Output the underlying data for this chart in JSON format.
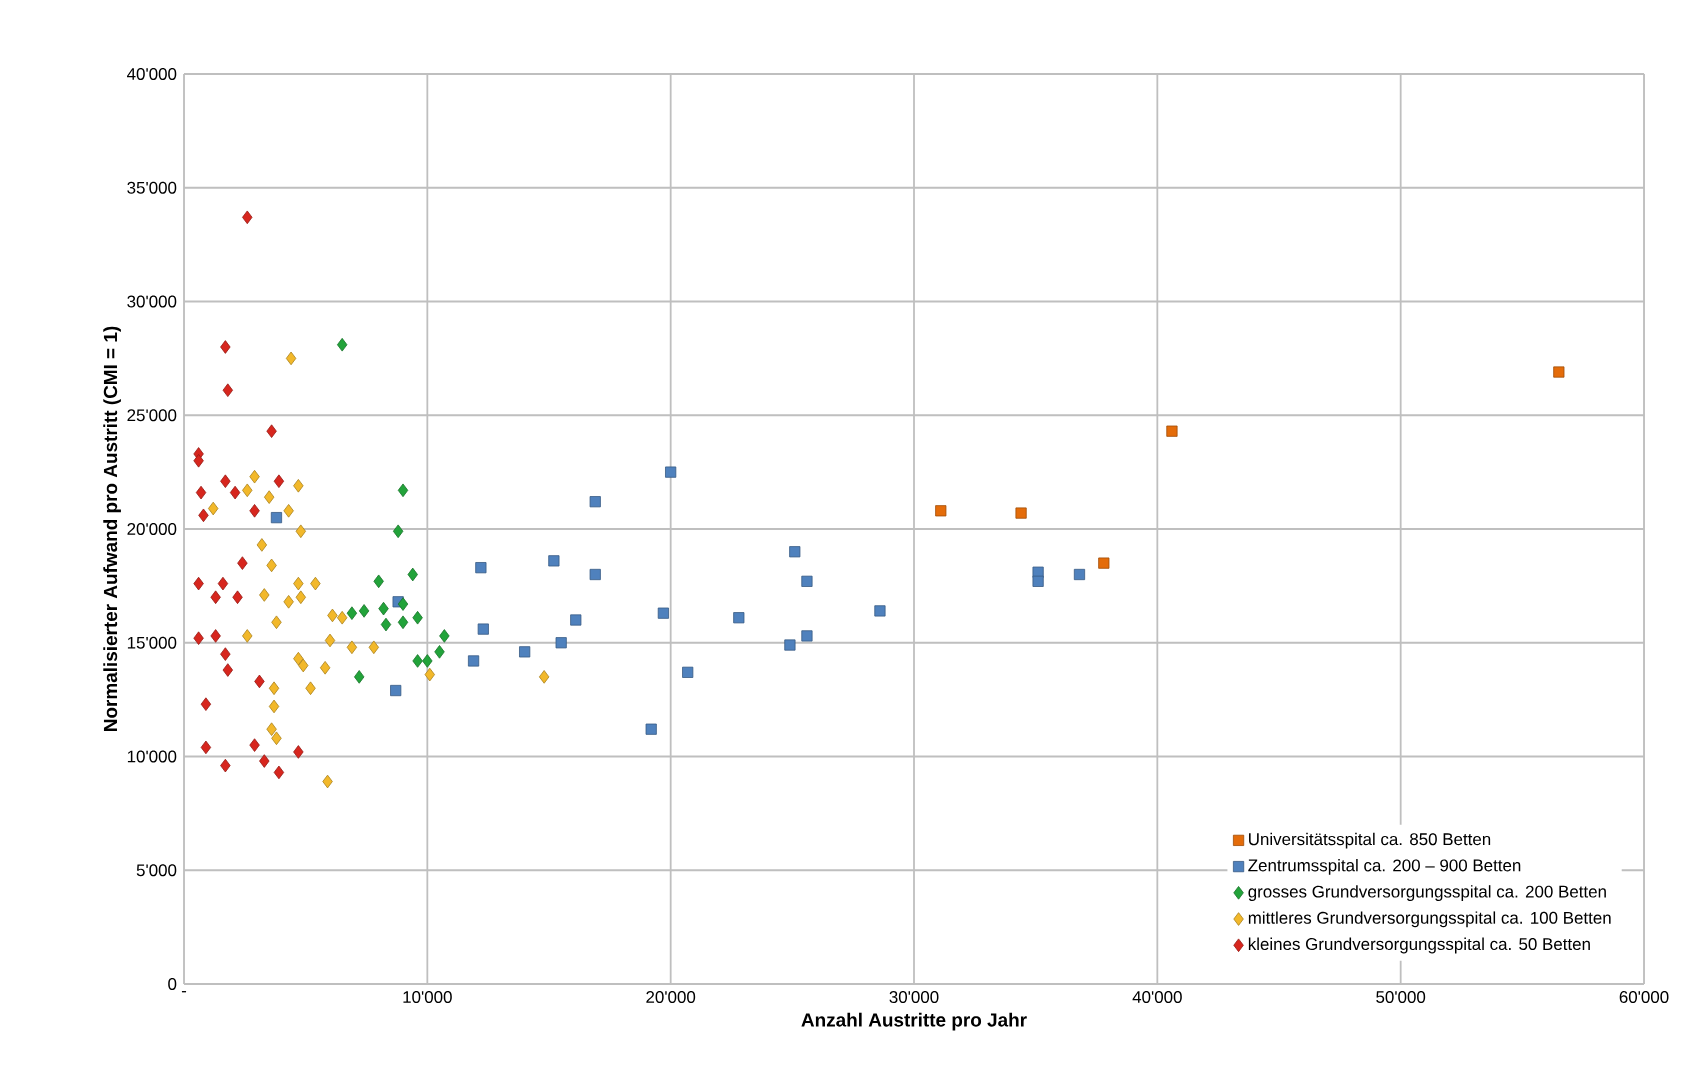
{
  "chart_data": {
    "type": "scatter",
    "xlabel": "Anzahl Austritte pro Jahr",
    "ylabel": "Normalisierter Aufwand pro Austritt (CMI = 1)",
    "xlim": [
      0,
      60000
    ],
    "ylim": [
      0,
      40000
    ],
    "xticks": [
      {
        "value": 0,
        "label": "-"
      },
      {
        "value": 10000,
        "label": "10'000"
      },
      {
        "value": 20000,
        "label": "20'000"
      },
      {
        "value": 30000,
        "label": "30'000"
      },
      {
        "value": 40000,
        "label": "40'000"
      },
      {
        "value": 50000,
        "label": "50'000"
      },
      {
        "value": 60000,
        "label": "60'000"
      }
    ],
    "yticks": [
      0,
      {
        "value": 5000,
        "label": "5'000"
      },
      {
        "value": 10000,
        "label": "10'000"
      },
      {
        "value": 15000,
        "label": "15'000"
      },
      {
        "value": 20000,
        "label": "20'000"
      },
      {
        "value": 25000,
        "label": "25'000"
      },
      {
        "value": 30000,
        "label": "30'000"
      },
      {
        "value": 35000,
        "label": "35'000"
      },
      {
        "value": 40000,
        "label": "40'000"
      }
    ],
    "grid": true,
    "legend": "bottom right",
    "series": [
      {
        "name": "Universitätsspital ca. 850 Betten",
        "color": "#e46c0a",
        "marker": "square",
        "x": [
          31100,
          34400,
          37800,
          40600,
          56500
        ],
        "values": [
          20800,
          20700,
          18500,
          24300,
          26900
        ]
      },
      {
        "name": "Zentrumsspital ca. 200 – 900 Betten",
        "color": "#4f81bd",
        "marker": "square",
        "x": [
          3800,
          8800,
          8700,
          11900,
          12200,
          12300,
          14000,
          15200,
          15500,
          16100,
          16900,
          16900,
          19200,
          19700,
          20000,
          20700,
          22800,
          24900,
          25100,
          25600,
          25600,
          28600,
          35100,
          35100,
          36800
        ],
        "values": [
          20500,
          16800,
          12900,
          14200,
          18300,
          15600,
          14600,
          18600,
          15000,
          16000,
          21200,
          18000,
          11200,
          16300,
          22500,
          13700,
          16100,
          14900,
          19000,
          17700,
          15300,
          16400,
          18100,
          17700,
          18000
        ]
      },
      {
        "name": "grosses Grundversorgungsspital ca. 200 Betten",
        "color": "#22a33a",
        "marker": "diamond",
        "x": [
          6500,
          9000,
          8800,
          8000,
          9400,
          6900,
          7400,
          8200,
          9000,
          8300,
          9000,
          9600,
          10700,
          10500,
          9600,
          10000,
          7200
        ],
        "values": [
          28100,
          21700,
          19900,
          17700,
          18000,
          16300,
          16400,
          16500,
          16700,
          15800,
          15900,
          16100,
          15300,
          14600,
          14200,
          14200,
          13500
        ]
      },
      {
        "name": "mittleres Grundversorgungsspital ca. 100 Betten",
        "color": "#f2b82a",
        "marker": "diamond",
        "x": [
          4400,
          2900,
          2600,
          4700,
          3500,
          1200,
          4300,
          4800,
          3200,
          3600,
          4700,
          5400,
          3300,
          4300,
          4800,
          6100,
          6500,
          3800,
          2600,
          6000,
          6900,
          7800,
          4700,
          4900,
          5800,
          5200,
          3700,
          3700,
          3600,
          3800,
          5900,
          10100,
          14800
        ],
        "values": [
          27500,
          22300,
          21700,
          21900,
          21400,
          20900,
          20800,
          19900,
          19300,
          18400,
          17600,
          17600,
          17100,
          16800,
          17000,
          16200,
          16100,
          15900,
          15300,
          15100,
          14800,
          14800,
          14300,
          14000,
          13900,
          13000,
          13000,
          12200,
          11200,
          10800,
          8900,
          13600,
          13500
        ]
      },
      {
        "name": "kleines Grundversorgungsspital ca. 50 Betten",
        "color": "#d7261e",
        "marker": "diamond",
        "x": [
          2600,
          1700,
          1800,
          3600,
          600,
          600,
          1700,
          2100,
          3900,
          700,
          800,
          2900,
          2400,
          600,
          1600,
          1300,
          2200,
          600,
          1300,
          1700,
          1800,
          3100,
          900,
          900,
          2900,
          3300,
          4700,
          1700,
          3900
        ],
        "values": [
          33700,
          28000,
          26100,
          24300,
          23300,
          23000,
          22100,
          21600,
          22100,
          21600,
          20600,
          20800,
          18500,
          17600,
          17600,
          17000,
          17000,
          15200,
          15300,
          14500,
          13800,
          13300,
          12300,
          10400,
          10500,
          9800,
          10200,
          9600,
          9300
        ]
      }
    ]
  }
}
